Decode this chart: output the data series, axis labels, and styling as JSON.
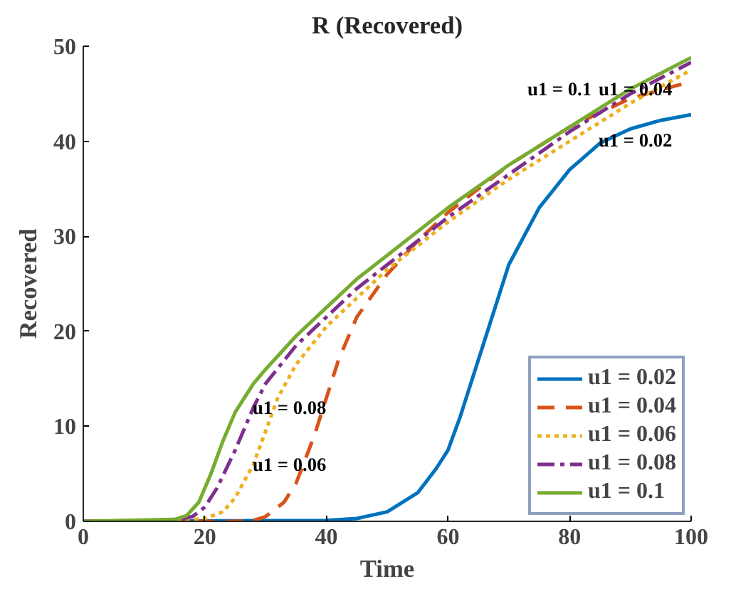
{
  "chart_data": {
    "type": "line",
    "title": "R (Recovered)",
    "xlabel": "Time",
    "ylabel": "Recovered",
    "xlim": [
      0,
      100
    ],
    "xticks": [
      0,
      20,
      40,
      60,
      80,
      100
    ],
    "ylim": [
      0,
      50
    ],
    "yticks": [
      0,
      10,
      20,
      30,
      40,
      50
    ],
    "grid": false,
    "legend": "bottom right",
    "marker": "none",
    "series": [
      {
        "name": "u1 = 0.02",
        "color": "#0072bd",
        "line_style": "solid",
        "x": [
          0,
          40,
          45,
          50,
          55,
          58,
          60,
          62,
          65,
          68,
          70,
          75,
          80,
          85,
          90,
          95,
          100
        ],
        "values": [
          0,
          0.1,
          0.3,
          1,
          3,
          5.5,
          7.5,
          11,
          17,
          23,
          27,
          33,
          37,
          39.8,
          41.3,
          42.2,
          42.8
        ]
      },
      {
        "name": "u1 = 0.04",
        "color": "#d95319",
        "line_style": "dashed",
        "x": [
          0,
          25,
          28,
          30,
          33,
          35,
          38,
          40,
          42,
          45,
          50,
          55,
          60,
          70,
          80,
          90,
          100
        ],
        "values": [
          0,
          0,
          0.1,
          0.5,
          2,
          4,
          9,
          13,
          17,
          21.5,
          26,
          29.5,
          32.5,
          37.5,
          41.5,
          44.5,
          46.3
        ]
      },
      {
        "name": "u1 = 0.06",
        "color": "#edb120",
        "line_style": "dotted",
        "x": [
          0,
          15,
          20,
          23,
          25,
          28,
          30,
          32,
          35,
          40,
          45,
          50,
          60,
          70,
          80,
          90,
          100
        ],
        "values": [
          0,
          0,
          0.3,
          1,
          2.5,
          6,
          9.5,
          13,
          16.5,
          20.5,
          23.5,
          26.5,
          31.5,
          36,
          40,
          44,
          47.5
        ]
      },
      {
        "name": "u1 = 0.08",
        "color": "#7e2f8e",
        "line_style": "dashdot",
        "x": [
          0,
          15,
          18,
          20,
          22,
          25,
          28,
          30,
          35,
          40,
          45,
          50,
          60,
          70,
          80,
          90,
          100
        ],
        "values": [
          0,
          0.1,
          0.5,
          1.5,
          3.5,
          7.5,
          12,
          14.5,
          18.5,
          21.5,
          24.5,
          27,
          32,
          36.5,
          41,
          45,
          48.3
        ]
      },
      {
        "name": "u1 = 0.1",
        "color": "#77ac30",
        "line_style": "solid",
        "x": [
          0,
          15,
          17,
          19,
          21,
          23,
          25,
          28,
          30,
          35,
          40,
          45,
          50,
          60,
          70,
          80,
          90,
          100
        ],
        "values": [
          0,
          0.2,
          0.6,
          2,
          5,
          8.5,
          11.5,
          14.5,
          16,
          19.5,
          22.5,
          25.5,
          28,
          33,
          37.5,
          41.5,
          45.5,
          48.8
        ]
      }
    ],
    "annotations": [
      "u1 = 0.1",
      "u1 = 0.04",
      "u1 = 0.02",
      "u1 = 0.08",
      "u1 = 0.06"
    ]
  }
}
